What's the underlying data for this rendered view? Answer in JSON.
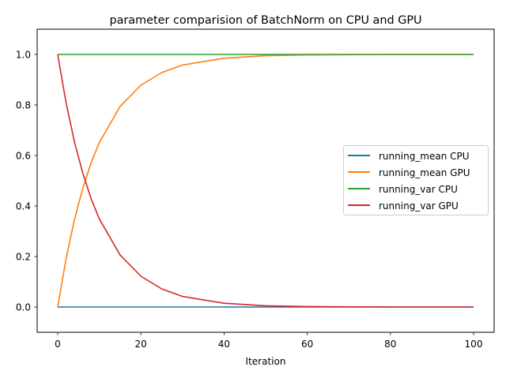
{
  "chart_data": {
    "type": "line",
    "title": "parameter comparision of BatchNorm on CPU and GPU",
    "xlabel": "Iteration",
    "ylabel": "",
    "xlim": [
      -5,
      105
    ],
    "ylim": [
      -0.1,
      1.1
    ],
    "xticks": [
      0,
      20,
      40,
      60,
      80,
      100
    ],
    "xtick_labels": [
      "0",
      "20",
      "40",
      "60",
      "80",
      "100"
    ],
    "yticks": [
      0.0,
      0.2,
      0.4,
      0.6,
      0.8,
      1.0
    ],
    "ytick_labels": [
      "0.0",
      "0.2",
      "0.4",
      "0.6",
      "0.8",
      "1.0"
    ],
    "grid": false,
    "legend_position": "center right",
    "x": [
      0,
      2,
      4,
      6,
      8,
      10,
      15,
      20,
      25,
      30,
      40,
      50,
      60,
      80,
      100
    ],
    "series": [
      {
        "name": "running_mean CPU",
        "color": "#1f77b4",
        "values": [
          0,
          0,
          0,
          0,
          0,
          0,
          0,
          0,
          0,
          0,
          0,
          0,
          0,
          0,
          0
        ]
      },
      {
        "name": "running_mean GPU",
        "color": "#ff7f0e",
        "values": [
          0,
          0.19,
          0.344,
          0.469,
          0.57,
          0.651,
          0.794,
          0.878,
          0.928,
          0.958,
          0.985,
          0.995,
          0.998,
          1.0,
          1.0
        ]
      },
      {
        "name": "running_var CPU",
        "color": "#2ca02c",
        "values": [
          1,
          1,
          1,
          1,
          1,
          1,
          1,
          1,
          1,
          1,
          1,
          1,
          1,
          1,
          1
        ]
      },
      {
        "name": "running_var GPU",
        "color": "#d62728",
        "values": [
          1,
          0.81,
          0.656,
          0.531,
          0.43,
          0.349,
          0.206,
          0.122,
          0.072,
          0.042,
          0.015,
          0.005,
          0.002,
          0.0,
          0.0
        ]
      }
    ]
  },
  "legend": {
    "items": [
      {
        "label": "running_mean CPU",
        "color": "#1f77b4"
      },
      {
        "label": "running_mean GPU",
        "color": "#ff7f0e"
      },
      {
        "label": "running_var CPU",
        "color": "#2ca02c"
      },
      {
        "label": "running_var GPU",
        "color": "#d62728"
      }
    ]
  }
}
